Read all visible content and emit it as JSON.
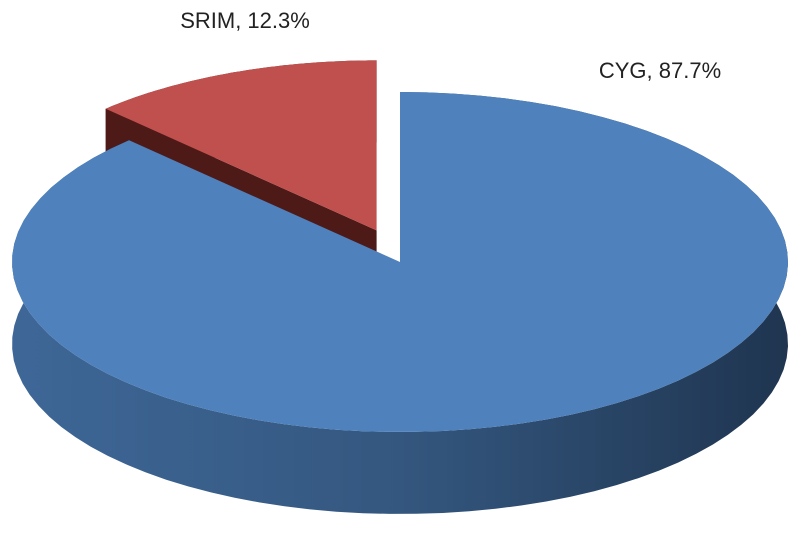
{
  "chart_data": {
    "type": "pie",
    "categories": [
      "CYG",
      "SRIM"
    ],
    "values": [
      87.7,
      12.3
    ],
    "value_labels": [
      "CYG, 87.7%",
      "SRIM, 12.3%"
    ],
    "colors": [
      "#4f81bd",
      "#c0504d"
    ]
  }
}
